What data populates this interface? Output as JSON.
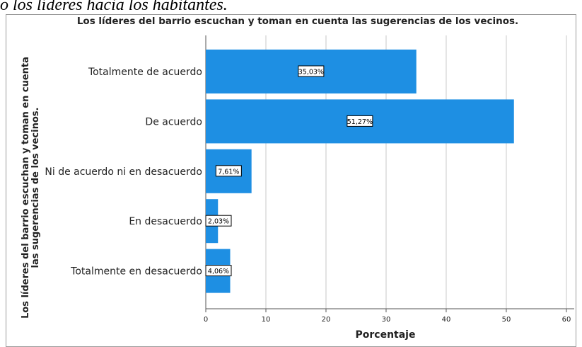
{
  "caption": "o los líderes hacia los habitantes.",
  "chart_data": {
    "type": "barh",
    "title": "Los líderes del barrio escuchan y toman en cuenta las sugerencias de los vecinos.",
    "ylabel": [
      "Los líderes del barrio escuchan y toman en cuenta",
      "las sugerencias de los vecinos."
    ],
    "xlabel": "Porcentaje",
    "categories": [
      "Totalmente de acuerdo",
      "De acuerdo",
      "Ni de acuerdo ni en desacuerdo",
      "En desacuerdo",
      "Totalmente en desacuerdo"
    ],
    "values": [
      35.03,
      51.27,
      7.61,
      2.03,
      4.06
    ],
    "value_labels": [
      "35,03%",
      "51,27%",
      "7,61%",
      "2,03%",
      "4,06%"
    ],
    "color": "#1e8fe3",
    "xlim": [
      0,
      61.3
    ],
    "xticks": [
      0,
      10,
      20,
      30,
      40,
      50,
      60
    ],
    "grid": true
  }
}
